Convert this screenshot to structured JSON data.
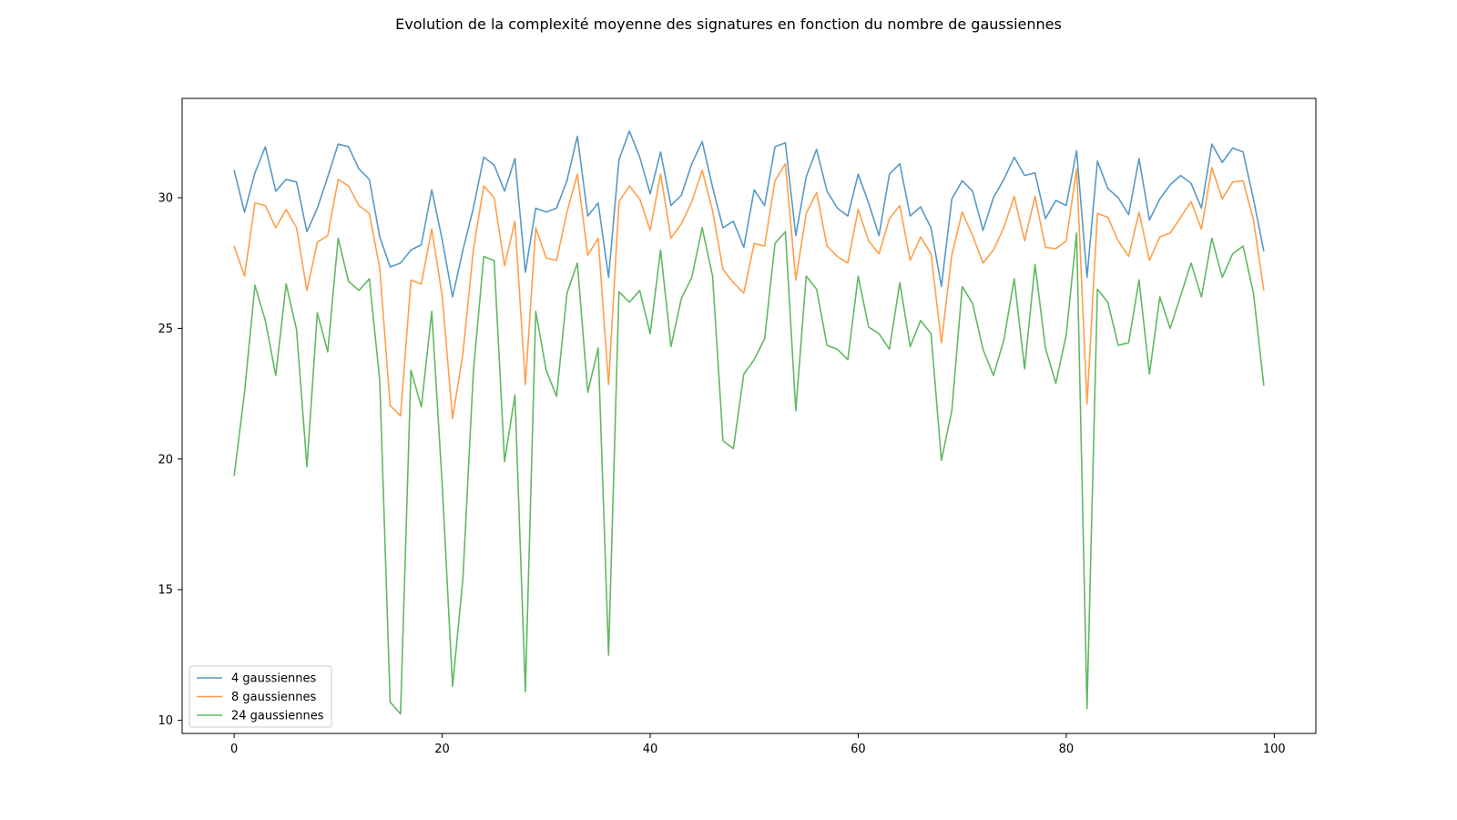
{
  "chart_data": {
    "type": "line",
    "title": "Evolution de la complexité moyenne des signatures en fonction du nombre de gaussiennes",
    "xlabel": "",
    "ylabel": "",
    "xlim": [
      -5,
      104
    ],
    "ylim": [
      9.5,
      33.8
    ],
    "xticks": [
      0,
      20,
      40,
      60,
      80,
      100
    ],
    "yticks": [
      10,
      15,
      20,
      25,
      30
    ],
    "grid": false,
    "legend_position": "lower-left",
    "x": [
      0,
      1,
      2,
      3,
      4,
      5,
      6,
      7,
      8,
      9,
      10,
      11,
      12,
      13,
      14,
      15,
      16,
      17,
      18,
      19,
      20,
      21,
      22,
      23,
      24,
      25,
      26,
      27,
      28,
      29,
      30,
      31,
      32,
      33,
      34,
      35,
      36,
      37,
      38,
      39,
      40,
      41,
      42,
      43,
      44,
      45,
      46,
      47,
      48,
      49,
      50,
      51,
      52,
      53,
      54,
      55,
      56,
      57,
      58,
      59,
      60,
      61,
      62,
      63,
      64,
      65,
      66,
      67,
      68,
      69,
      70,
      71,
      72,
      73,
      74,
      75,
      76,
      77,
      78,
      79,
      80,
      81,
      82,
      83,
      84,
      85,
      86,
      87,
      88,
      89,
      90,
      91,
      92,
      93,
      94,
      95,
      96,
      97,
      98,
      99
    ],
    "series": [
      {
        "name": "4 gaussiennes",
        "color": "#1f77b4",
        "values": [
          31.05,
          29.45,
          30.95,
          31.95,
          30.25,
          30.7,
          30.6,
          28.7,
          29.6,
          30.8,
          32.05,
          31.95,
          31.1,
          30.7,
          28.5,
          27.35,
          27.5,
          28.0,
          28.2,
          30.3,
          28.4,
          26.2,
          28.0,
          29.6,
          31.55,
          31.25,
          30.25,
          31.5,
          27.15,
          29.6,
          29.45,
          29.6,
          30.65,
          32.35,
          29.3,
          29.8,
          26.95,
          31.45,
          32.55,
          31.55,
          30.15,
          31.75,
          29.7,
          30.1,
          31.3,
          32.15,
          30.4,
          28.85,
          29.1,
          28.1,
          30.3,
          29.7,
          31.95,
          32.1,
          28.55,
          30.8,
          31.85,
          30.25,
          29.6,
          29.3,
          30.9,
          29.8,
          28.55,
          30.9,
          31.3,
          29.3,
          29.65,
          28.85,
          26.6,
          29.95,
          30.65,
          30.25,
          28.75,
          30.0,
          30.7,
          31.55,
          30.85,
          30.95,
          29.2,
          29.9,
          29.7,
          31.8,
          26.95,
          31.4,
          30.35,
          30.0,
          29.35,
          31.5,
          29.15,
          29.95,
          30.5,
          30.85,
          30.55,
          29.6,
          32.05,
          31.35,
          31.9,
          31.75,
          29.95,
          27.95
        ]
      },
      {
        "name": "8 gaussiennes",
        "color": "#ff7f0e",
        "values": [
          28.15,
          27.0,
          29.8,
          29.7,
          28.85,
          29.55,
          28.85,
          26.45,
          28.3,
          28.55,
          30.7,
          30.45,
          29.7,
          29.4,
          27.3,
          22.05,
          21.65,
          26.85,
          26.7,
          28.8,
          26.25,
          21.55,
          24.05,
          28.0,
          30.45,
          30.0,
          27.4,
          29.1,
          22.85,
          28.85,
          27.7,
          27.6,
          29.45,
          30.9,
          27.8,
          28.45,
          22.85,
          29.85,
          30.45,
          29.95,
          28.75,
          30.9,
          28.45,
          29.0,
          29.85,
          31.05,
          29.5,
          27.25,
          26.75,
          26.35,
          28.25,
          28.15,
          30.65,
          31.3,
          26.85,
          29.4,
          30.2,
          28.15,
          27.75,
          27.5,
          29.55,
          28.35,
          27.85,
          29.2,
          29.7,
          27.6,
          28.5,
          27.85,
          24.45,
          27.8,
          29.45,
          28.55,
          27.5,
          28.0,
          28.85,
          30.05,
          28.35,
          30.05,
          28.1,
          28.05,
          28.35,
          31.1,
          22.1,
          29.4,
          29.25,
          28.35,
          27.75,
          29.45,
          27.6,
          28.5,
          28.65,
          29.25,
          29.85,
          28.8,
          31.15,
          29.95,
          30.6,
          30.65,
          29.15,
          26.45
        ]
      },
      {
        "name": "24 gaussiennes",
        "color": "#2ca02c",
        "values": [
          19.35,
          22.55,
          26.65,
          25.3,
          23.2,
          26.7,
          24.95,
          19.7,
          25.6,
          24.1,
          28.45,
          26.8,
          26.45,
          26.9,
          23.0,
          10.7,
          10.25,
          23.4,
          22.0,
          25.65,
          19.05,
          11.3,
          15.45,
          23.35,
          27.75,
          27.6,
          19.9,
          22.45,
          11.1,
          25.65,
          23.4,
          22.4,
          26.35,
          27.5,
          22.55,
          24.25,
          12.5,
          26.4,
          26.0,
          26.45,
          24.8,
          28.0,
          24.3,
          26.15,
          26.95,
          28.85,
          27.0,
          20.7,
          20.4,
          23.25,
          23.8,
          24.6,
          28.25,
          28.7,
          21.85,
          27.0,
          26.5,
          24.35,
          24.2,
          23.8,
          27.0,
          25.05,
          24.8,
          24.2,
          26.75,
          24.3,
          25.3,
          24.8,
          19.95,
          21.85,
          26.6,
          25.95,
          24.2,
          23.2,
          24.55,
          26.9,
          23.45,
          27.45,
          24.25,
          22.9,
          24.75,
          28.65,
          10.45,
          26.5,
          26.0,
          24.35,
          24.45,
          26.85,
          23.25,
          26.2,
          25.0,
          26.25,
          27.5,
          26.2,
          28.45,
          26.95,
          27.85,
          28.15,
          26.35,
          22.8
        ]
      }
    ]
  }
}
